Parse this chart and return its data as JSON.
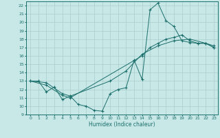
{
  "xlabel": "Humidex (Indice chaleur)",
  "bg_color": "#c8e8e8",
  "line_color": "#1a6e6a",
  "grid_color": "#a8cccc",
  "xlim": [
    -0.5,
    23.5
  ],
  "ylim": [
    9,
    22.5
  ],
  "xticks": [
    0,
    1,
    2,
    3,
    4,
    5,
    6,
    7,
    8,
    9,
    10,
    11,
    12,
    13,
    14,
    15,
    16,
    17,
    18,
    19,
    20,
    21,
    22,
    23
  ],
  "yticks": [
    9,
    10,
    11,
    12,
    13,
    14,
    15,
    16,
    17,
    18,
    19,
    20,
    21,
    22
  ],
  "line1_x": [
    0,
    1,
    2,
    3,
    4,
    5,
    6,
    7,
    8,
    9,
    10,
    11,
    12,
    13,
    14,
    15,
    16,
    17,
    18,
    19,
    20,
    21,
    22,
    23
  ],
  "line1_y": [
    13,
    13,
    11.7,
    12.3,
    10.8,
    11.2,
    10.2,
    10.0,
    9.5,
    9.4,
    11.5,
    12.0,
    12.2,
    15.5,
    13.2,
    21.5,
    22.3,
    20.2,
    19.5,
    17.8,
    17.6,
    17.5,
    17.5,
    17.0
  ],
  "line2_x": [
    0,
    2,
    4,
    5,
    14,
    15,
    16,
    17,
    18,
    19,
    20,
    21,
    22,
    23
  ],
  "line2_y": [
    13,
    12.5,
    11.3,
    11.0,
    16.0,
    17.0,
    17.5,
    18.0,
    18.2,
    18.5,
    17.8,
    17.5,
    17.5,
    17.0
  ],
  "line3_x": [
    0,
    2,
    4,
    5,
    10,
    12,
    14,
    16,
    18,
    20,
    22,
    23
  ],
  "line3_y": [
    13,
    12.8,
    11.5,
    11.2,
    13.0,
    14.2,
    16.2,
    17.2,
    17.8,
    18.0,
    17.5,
    17.2
  ]
}
